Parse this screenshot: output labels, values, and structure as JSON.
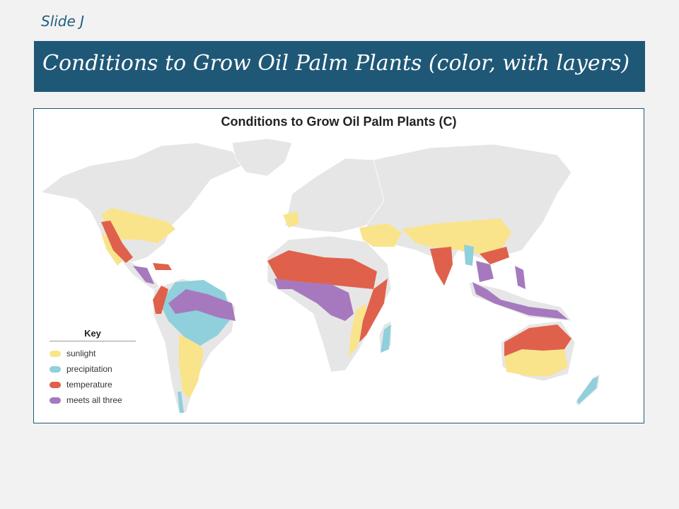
{
  "slide": {
    "label": "Slide J",
    "title": "Conditions to Grow Oil Palm Plants (color, with layers)"
  },
  "map": {
    "title": "Conditions to Grow Oil Palm Plants (C)",
    "key": {
      "title": "Key",
      "items": [
        {
          "label": "sunlight",
          "color": "#f9e48c"
        },
        {
          "label": "precipitation",
          "color": "#8fd0dc"
        },
        {
          "label": "temperature",
          "color": "#e0614b"
        },
        {
          "label": "meets all three",
          "color": "#a679be"
        }
      ]
    },
    "colors": {
      "land": "#e6e6e6",
      "border": "#ffffff"
    }
  }
}
